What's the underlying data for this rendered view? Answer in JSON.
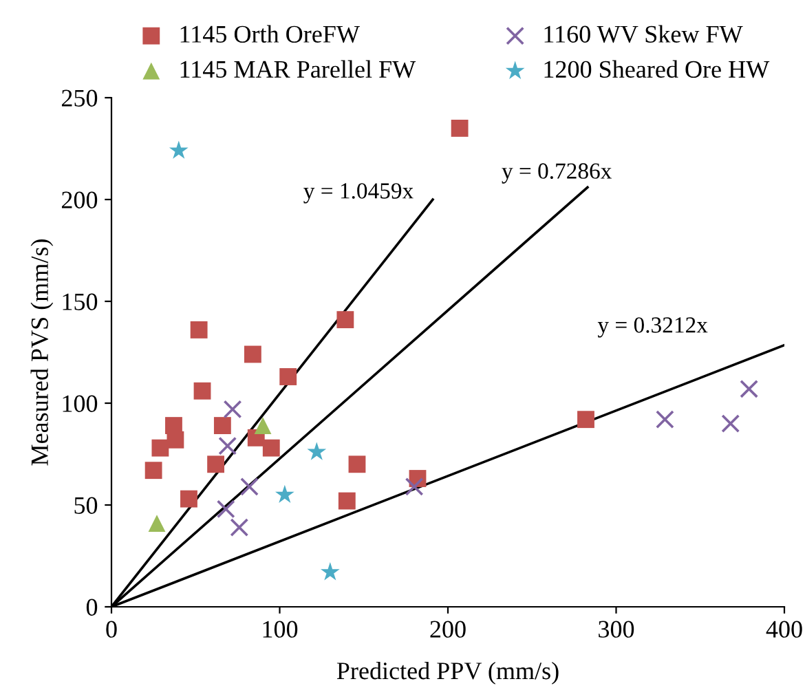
{
  "chart_data": {
    "type": "scatter",
    "xlabel": "Predicted PPV (mm/s)",
    "ylabel": "Measured PVS (mm/s)",
    "xlim": [
      0,
      400
    ],
    "ylim": [
      0,
      250
    ],
    "xticks": [
      0,
      100,
      200,
      300,
      400
    ],
    "yticks": [
      0,
      50,
      100,
      150,
      200,
      250
    ],
    "grid": false,
    "legend": "top",
    "series": [
      {
        "name": "1145 Orth OreFW",
        "color": "#c0504d",
        "marker": "square",
        "x": [
          52,
          84,
          105,
          54,
          37,
          66,
          38,
          29,
          25,
          62,
          86,
          95,
          46,
          139,
          146,
          140,
          182,
          207,
          282
        ],
        "values": [
          136,
          124,
          113,
          106,
          89,
          89,
          82,
          78,
          67,
          70,
          83,
          78,
          53,
          141,
          70,
          52,
          63,
          235,
          92
        ]
      },
      {
        "name": "1145 MAR Parellel FW",
        "color": "#9bbb59",
        "marker": "triangle",
        "x": [
          27,
          90
        ],
        "values": [
          41,
          89
        ]
      },
      {
        "name": "1160 WV Skew FW",
        "color": "#8064a2",
        "marker": "cross",
        "x": [
          72,
          69,
          82,
          68,
          76,
          180,
          329,
          368,
          379
        ],
        "values": [
          97,
          79,
          59,
          48,
          39,
          59,
          92,
          90,
          107
        ]
      },
      {
        "name": "1200 Sheared Ore HW",
        "color": "#4bacc6",
        "marker": "star",
        "x": [
          40,
          122,
          103,
          130
        ],
        "values": [
          224,
          76,
          55,
          17
        ]
      },
      {
        "type": "line",
        "color": "#000000",
        "x": [
          0,
          191
        ],
        "values": [
          0,
          200
        ]
      },
      {
        "type": "line",
        "color": "#000000",
        "x": [
          0,
          283
        ],
        "values": [
          0,
          206
        ]
      },
      {
        "type": "line",
        "color": "#000000",
        "x": [
          0,
          400
        ],
        "values": [
          0,
          128.5
        ]
      }
    ],
    "annotations": [
      "y = 1.0459x",
      "y = 0.7286x",
      "y = 0.3212x"
    ]
  }
}
